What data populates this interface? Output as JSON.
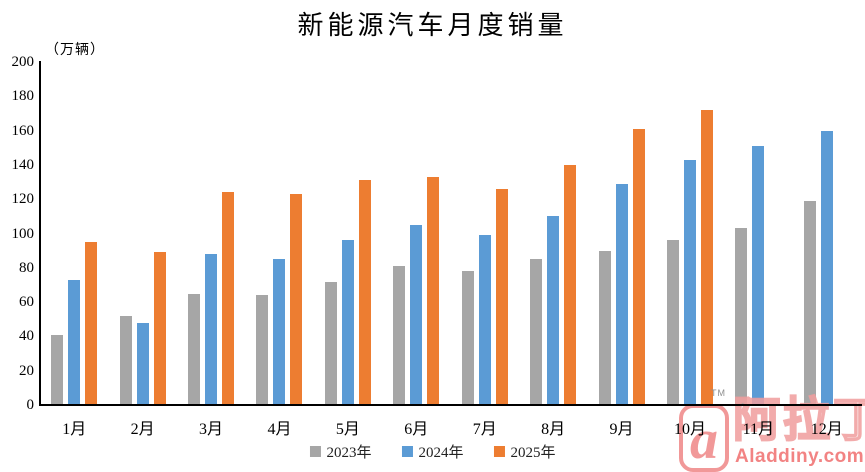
{
  "chart_data": {
    "type": "bar",
    "title": "新能源汽车月度销量",
    "ylabel": "（万辆）",
    "xlabel": "",
    "grid": false,
    "legend_position": "bottom",
    "ylim": [
      0,
      200
    ],
    "ytick_step": 20,
    "yticks": [
      0,
      20,
      40,
      60,
      80,
      100,
      120,
      140,
      160,
      180,
      200
    ],
    "categories": [
      "1月",
      "2月",
      "3月",
      "4月",
      "5月",
      "6月",
      "7月",
      "8月",
      "9月",
      "10月",
      "11月",
      "12月"
    ],
    "series": [
      {
        "name": "2023年",
        "color": "#a6a6a6",
        "values": [
          41,
          52,
          65,
          64,
          72,
          81,
          78,
          85,
          90,
          96,
          103,
          119
        ]
      },
      {
        "name": "2024年",
        "color": "#5b9bd5",
        "values": [
          73,
          48,
          88,
          85,
          96,
          105,
          99,
          110,
          129,
          143,
          151,
          160
        ]
      },
      {
        "name": "2025年",
        "color": "#ed7d31",
        "values": [
          95,
          89,
          124,
          123,
          131,
          133,
          126,
          140,
          161,
          172,
          null,
          null
        ]
      }
    ]
  },
  "watermark": {
    "tm": "TM",
    "logo_letter": "a",
    "brand_cn": "阿拉丁",
    "brand_url": "Aladdiny.com",
    "accent_color": "#f08a8a"
  }
}
